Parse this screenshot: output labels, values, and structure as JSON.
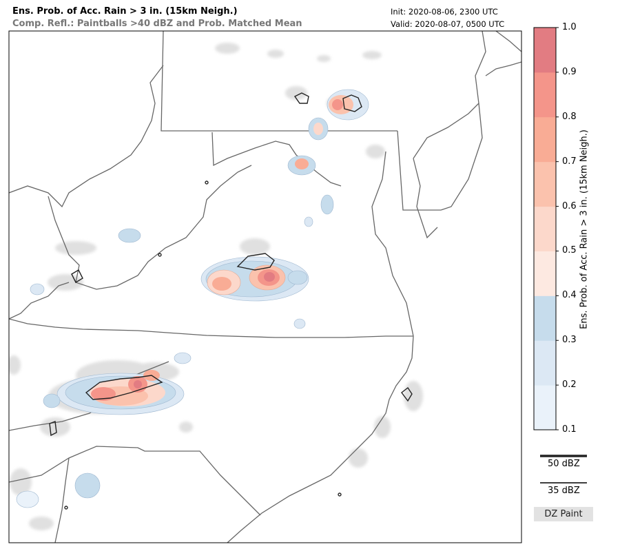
{
  "header": {
    "title": "Ens. Prob. of Acc. Rain > 3 in. (15km Neigh.)",
    "subtitle": "Comp. Refl.: Paintballs >40 dBZ and Prob. Matched Mean",
    "init": "Init: 2020-08-06, 2300 UTC",
    "valid": "Valid: 2020-08-07, 0500 UTC"
  },
  "colorbar": {
    "label": "Ens. Prob. of Acc. Rain > 3 in. (15km Neigh.)",
    "ticks": [
      "0.1",
      "0.2",
      "0.3",
      "0.4",
      "0.5",
      "0.6",
      "0.7",
      "0.8",
      "0.9",
      "1.0"
    ],
    "colors": [
      "#eaf2fa",
      "#dce8f4",
      "#c6dcec",
      "#fde9e1",
      "#fcd8cb",
      "#fbc2ad",
      "#f9ac95",
      "#f4958a",
      "#e27c82"
    ]
  },
  "legend": {
    "line_50_label": "50 dBZ",
    "line_35_label": "35 dBZ",
    "paint_label": "DZ Paint"
  },
  "colors": {
    "border": "#666666",
    "contour": "#222222",
    "paint": "#cccccc"
  }
}
